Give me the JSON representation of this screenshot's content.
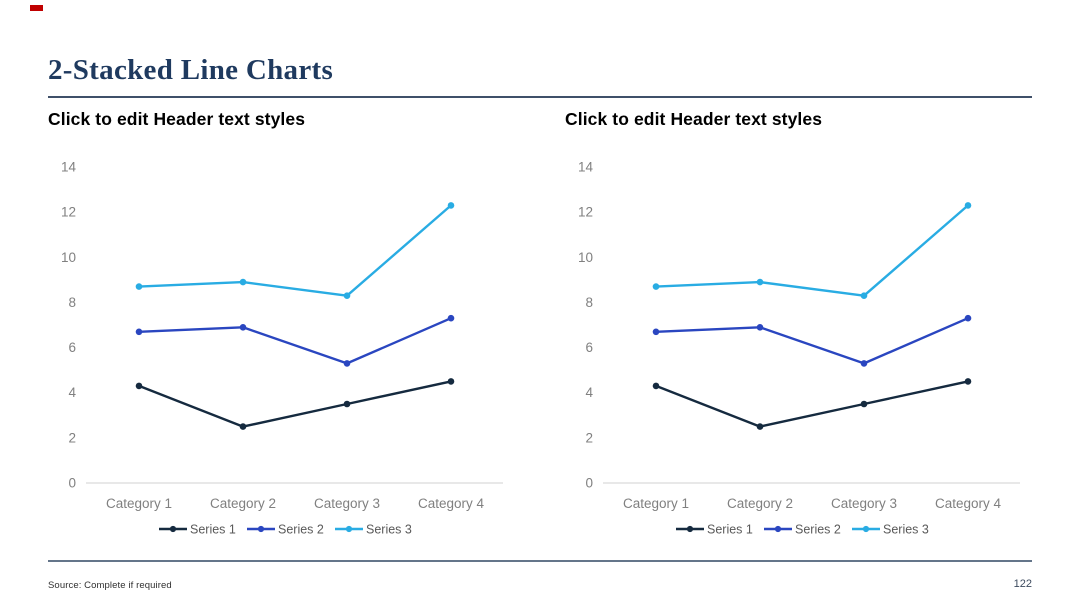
{
  "slide": {
    "title": "2-Stacked Line Charts",
    "source_note": "Source: Complete if required",
    "page_number": "122",
    "accent_color": "#C00000",
    "title_color": "#1F3A5F"
  },
  "chart_data": [
    {
      "type": "line",
      "title": "Click to edit Header text styles",
      "categories": [
        "Category 1",
        "Category 2",
        "Category 3",
        "Category 4"
      ],
      "series": [
        {
          "name": "Series 1",
          "color": "#152A3F",
          "values": [
            4.3,
            2.5,
            3.5,
            4.5
          ]
        },
        {
          "name": "Series 2",
          "color": "#2A46C0",
          "values": [
            6.7,
            6.9,
            5.3,
            7.3
          ]
        },
        {
          "name": "Series 3",
          "color": "#29ACE3",
          "values": [
            8.7,
            8.9,
            8.3,
            12.3
          ]
        }
      ],
      "ylim": [
        0,
        14
      ],
      "yticks": [
        0,
        2,
        4,
        6,
        8,
        10,
        12,
        14
      ],
      "xlabel": "",
      "ylabel": "",
      "grid": false,
      "legend_position": "bottom",
      "axis_line_color": "#D9D9D9",
      "tick_label_color": "#808080",
      "legend_label_color": "#595959"
    },
    {
      "type": "line",
      "title": "Click to edit Header text styles",
      "categories": [
        "Category 1",
        "Category 2",
        "Category 3",
        "Category 4"
      ],
      "series": [
        {
          "name": "Series 1",
          "color": "#152A3F",
          "values": [
            4.3,
            2.5,
            3.5,
            4.5
          ]
        },
        {
          "name": "Series 2",
          "color": "#2A46C0",
          "values": [
            6.7,
            6.9,
            5.3,
            7.3
          ]
        },
        {
          "name": "Series 3",
          "color": "#29ACE3",
          "values": [
            8.7,
            8.9,
            8.3,
            12.3
          ]
        }
      ],
      "ylim": [
        0,
        14
      ],
      "yticks": [
        0,
        2,
        4,
        6,
        8,
        10,
        12,
        14
      ],
      "xlabel": "",
      "ylabel": "",
      "grid": false,
      "legend_position": "bottom",
      "axis_line_color": "#D9D9D9",
      "tick_label_color": "#808080",
      "legend_label_color": "#595959"
    }
  ]
}
